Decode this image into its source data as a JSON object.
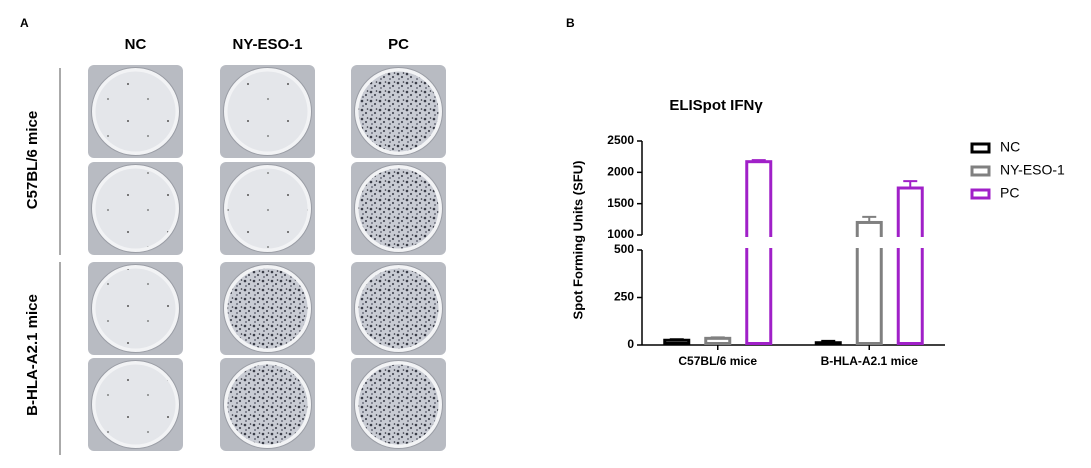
{
  "panel_a": {
    "label": "A",
    "columns": [
      "NC",
      "NY-ESO-1",
      "PC"
    ],
    "rows": [
      "C57BL/6 mice",
      "B-HLA-A2.1 mice"
    ]
  },
  "panel_b": {
    "label": "B"
  },
  "chart_data": {
    "type": "bar",
    "title": "ELISpot IFNγ",
    "y_label": "Spot Forming Units (SFU)",
    "categories": [
      "C57BL/6 mice",
      "B-HLA-A2.1 mice"
    ],
    "series": [
      {
        "name": "NC",
        "color": "#000000",
        "values": [
          25,
          12
        ],
        "errors": [
          5,
          10
        ]
      },
      {
        "name": "NY-ESO-1",
        "color": "#808080",
        "values": [
          35,
          1200
        ],
        "errors": [
          5,
          90
        ]
      },
      {
        "name": "PC",
        "color": "#a020c8",
        "values": [
          2170,
          1750
        ],
        "errors": [
          25,
          110
        ]
      }
    ],
    "ylim": [
      0,
      2500
    ],
    "ybreak": [
      500,
      1000
    ],
    "yticks": [
      0,
      250,
      500,
      1000,
      1500,
      2000,
      2500
    ],
    "legend": "right"
  }
}
